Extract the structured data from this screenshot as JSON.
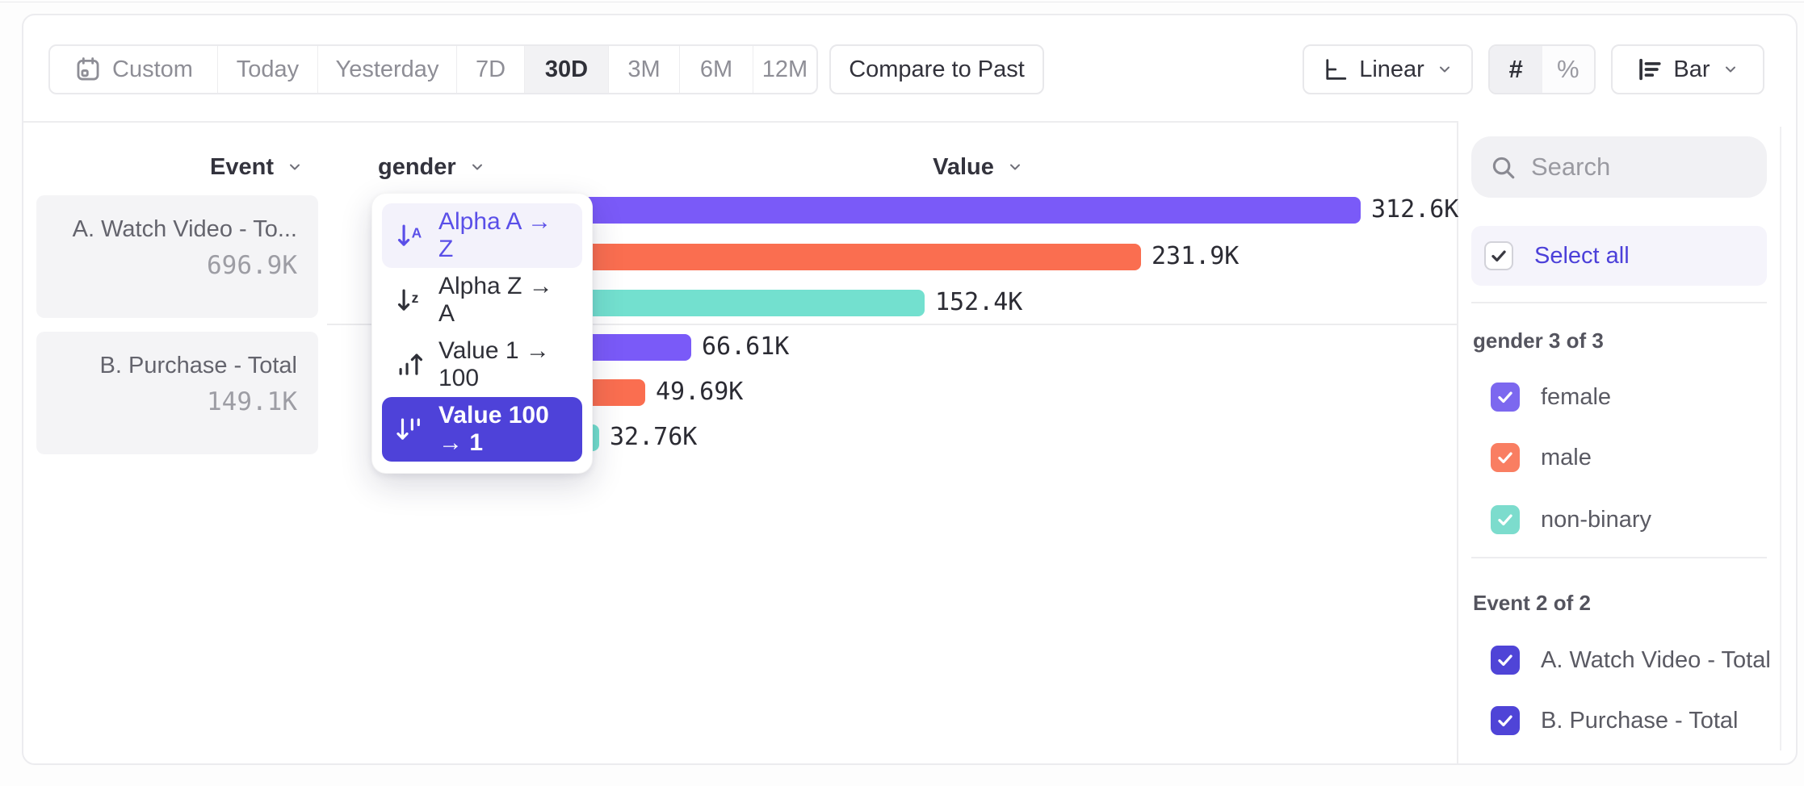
{
  "toolbar": {
    "date_ranges": [
      {
        "label": "Custom",
        "icon": "calendar-icon",
        "selected": false
      },
      {
        "label": "Today",
        "selected": false
      },
      {
        "label": "Yesterday",
        "selected": false
      },
      {
        "label": "7D",
        "selected": false
      },
      {
        "label": "30D",
        "selected": true
      },
      {
        "label": "3M",
        "selected": false
      },
      {
        "label": "6M",
        "selected": false
      },
      {
        "label": "12M",
        "selected": false
      }
    ],
    "compare_label": "Compare to Past",
    "scale_label": "Linear",
    "format_count": "#",
    "format_percent": "%",
    "chart_type_label": "Bar"
  },
  "columns": {
    "event": "Event",
    "breakdown": "gender",
    "value": "Value"
  },
  "events": [
    {
      "label": "A. Watch Video - To...",
      "total": "696.9K"
    },
    {
      "label": "B. Purchase - Total",
      "total": "149.1K"
    }
  ],
  "sort_menu": {
    "items": [
      {
        "label": "Alpha A → Z",
        "icon": "sort-alpha-asc-icon",
        "state": "highlight"
      },
      {
        "label": "Alpha Z → A",
        "icon": "sort-alpha-desc-icon",
        "state": ""
      },
      {
        "label": "Value 1 → 100",
        "icon": "sort-value-asc-icon",
        "state": ""
      },
      {
        "label": "Value 100 → 1",
        "icon": "sort-value-desc-icon",
        "state": "selected"
      }
    ]
  },
  "chart_data": {
    "type": "bar",
    "orientation": "horizontal",
    "sort": "Value 100 → 1",
    "x_max": 312600,
    "groups": [
      {
        "event": "A. Watch Video - Total",
        "total_display": "696.9K",
        "bars": [
          {
            "segment": "female",
            "value": 312600,
            "display": "312.6K",
            "color": "#7A5AF8"
          },
          {
            "segment": "male",
            "value": 231900,
            "display": "231.9K",
            "color": "#FA6E50"
          },
          {
            "segment": "non-binary",
            "value": 152400,
            "display": "152.4K",
            "color": "#73E0CF"
          }
        ]
      },
      {
        "event": "B. Purchase - Total",
        "total_display": "149.1K",
        "bars": [
          {
            "segment": "female",
            "value": 66610,
            "display": "66.61K",
            "color": "#7A5AF8"
          },
          {
            "segment": "male",
            "value": 49690,
            "display": "49.69K",
            "color": "#FA6E50"
          },
          {
            "segment": "non-binary",
            "value": 32760,
            "display": "32.76K",
            "color": "#73E0CF"
          }
        ]
      }
    ]
  },
  "sidebar": {
    "search_placeholder": "Search",
    "select_all_label": "Select all",
    "sections": [
      {
        "title": "gender 3 of 3",
        "items": [
          {
            "label": "female",
            "color": "#7C68EF"
          },
          {
            "label": "male",
            "color": "#F97E62"
          },
          {
            "label": "non-binary",
            "color": "#7CDCCD"
          }
        ]
      },
      {
        "title": "Event 2 of 2",
        "items": [
          {
            "label": "A. Watch Video - Total",
            "color": "#4F44D7"
          },
          {
            "label": "B. Purchase - Total",
            "color": "#4F44D7"
          }
        ]
      }
    ]
  },
  "colors": {
    "series_purple": "#7A5AF8",
    "series_coral": "#FA6E50",
    "series_teal": "#73E0CF",
    "ui_purple": "#4E42D9",
    "accent_text": "#4C40D9"
  }
}
